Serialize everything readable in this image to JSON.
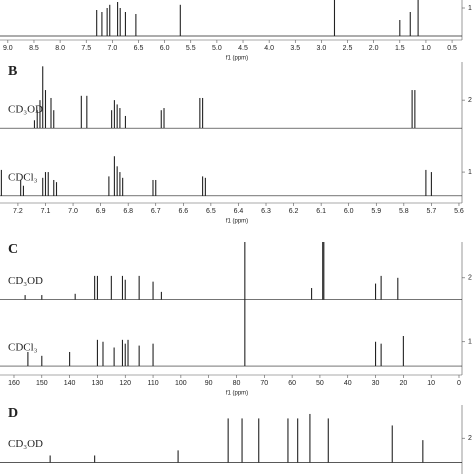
{
  "chart_data": [
    {
      "type": "spectrum",
      "xlabel": "f1 (ppm)",
      "xlim": [
        9.15,
        0.31
      ],
      "xticks": [
        {
          "value": 9,
          "label": "9.0"
        },
        8.5,
        {
          "value": 8,
          "label": "8.0"
        },
        7.5,
        {
          "value": 7,
          "label": "7.0"
        },
        6.5,
        {
          "value": 6,
          "label": "6.0"
        },
        5.5,
        {
          "value": 5,
          "label": "5.0"
        },
        4.5,
        {
          "value": 4,
          "label": "4.0"
        },
        3.5,
        {
          "value": 3,
          "label": "3.0"
        },
        2.5,
        {
          "value": 2,
          "label": "2.0"
        },
        1.5,
        {
          "value": 1,
          "label": "1.0"
        },
        0.5
      ],
      "y2lim": [
        0.2,
        1.2
      ],
      "y2ticks": [
        1
      ],
      "series": [
        {
          "color": "#222",
          "baseline": 0.3,
          "x": [
            7.3,
            7.2,
            7.1,
            7.05,
            6.9,
            6.85,
            6.75,
            6.55,
            5.7,
            2.75,
            1.5,
            1.3,
            1.15
          ],
          "values": [
            0.95,
            0.9,
            1.0,
            1.08,
            1.15,
            1.0,
            0.9,
            0.85,
            1.08,
            1.2,
            0.7,
            0.9,
            1.2
          ]
        }
      ]
    },
    {
      "type": "spectrum",
      "label": "B",
      "xlabel": "f1 (ppm)",
      "xlim": [
        7.265,
        5.589
      ],
      "xticks": [
        7.2,
        7.1,
        {
          "value": 7,
          "label": "7.0"
        },
        6.9,
        6.8,
        6.7,
        6.6,
        6.5,
        6.4,
        6.3,
        6.2,
        6.1,
        {
          "value": 6,
          "label": "6.0"
        },
        5.9,
        5.8,
        5.7,
        5.6
      ],
      "y2lim": [
        0.57,
        2.53
      ],
      "y2ticks": [
        1,
        2
      ],
      "series": [
        {
          "name": "CD₃OD",
          "color": "#222",
          "baseline": 1.61,
          "x": [
            7.14,
            7.13,
            7.12,
            7.11,
            7.1,
            7.08,
            7.07,
            6.97,
            6.95,
            6.86,
            6.85,
            6.84,
            6.83,
            6.81,
            6.68,
            6.67,
            6.54,
            6.53,
            5.77,
            5.76
          ],
          "values": [
            1.72,
            1.86,
            2.0,
            2.47,
            2.14,
            2.03,
            1.86,
            2.06,
            2.06,
            1.86,
            2.0,
            1.94,
            1.89,
            1.78,
            1.86,
            1.89,
            2.03,
            2.03,
            2.14,
            2.14
          ]
        },
        {
          "name": "CDCl₃",
          "color": "#222",
          "baseline": 0.67,
          "x": [
            7.26,
            7.19,
            7.18,
            7.11,
            7.1,
            7.09,
            7.07,
            7.06,
            6.87,
            6.85,
            6.84,
            6.83,
            6.82,
            6.71,
            6.7,
            6.53,
            6.52,
            5.72,
            5.7
          ],
          "values": [
            1.03,
            0.89,
            0.81,
            0.92,
            1.0,
            1.0,
            0.89,
            0.86,
            0.94,
            1.22,
            1.08,
            1.0,
            0.92,
            0.89,
            0.89,
            0.94,
            0.92,
            1.03,
            1.0
          ]
        }
      ]
    },
    {
      "type": "spectrum",
      "label": "C",
      "xlabel": "f1 (ppm)",
      "xlim": [
        165.03,
        -1.08
      ],
      "xticks": [
        160,
        150,
        140,
        130,
        120,
        110,
        100,
        90,
        80,
        70,
        60,
        50,
        40,
        30,
        20,
        10,
        0
      ],
      "y2lim": [
        0.48,
        2.56
      ],
      "y2ticks": [
        1,
        2
      ],
      "series": [
        {
          "name": "CD₃OD",
          "color": "#222",
          "baseline": 1.66,
          "x": [
            156,
            150,
            138,
            131,
            130,
            125,
            121,
            120,
            115,
            110,
            107,
            53,
            49,
            48.6,
            30,
            28,
            22
          ],
          "values": [
            1.73,
            1.73,
            1.75,
            2.03,
            2.03,
            2.03,
            2.03,
            1.97,
            2.03,
            1.94,
            1.78,
            1.84,
            2.56,
            2.56,
            1.91,
            2.03,
            2.0
          ]
        },
        {
          "name": "CDCl₃",
          "color": "#222",
          "baseline": 0.62,
          "x": [
            155,
            150,
            140,
            130,
            128,
            124,
            121,
            120,
            119,
            115,
            110,
            77,
            30,
            28,
            20
          ],
          "values": [
            0.84,
            0.78,
            0.84,
            1.03,
            1.0,
            0.91,
            1.03,
            0.97,
            1.03,
            0.94,
            0.97,
            2.56,
            1.0,
            0.97,
            1.09
          ]
        }
      ]
    },
    {
      "type": "spectrum",
      "label": "D",
      "xlim": [
        165.03,
        -1.08
      ],
      "y2lim": [
        1.44,
        2.52
      ],
      "y2ticks": [
        2
      ],
      "series": [
        {
          "name": "CD₃OD",
          "color": "#222",
          "baseline": 1.62,
          "x": [
            147,
            131,
            101,
            83,
            78,
            72,
            61.5,
            58,
            53.6,
            47,
            24,
            13
          ],
          "values": [
            1.73,
            1.73,
            1.81,
            2.31,
            2.31,
            2.31,
            2.31,
            2.31,
            2.38,
            2.31,
            2.2,
            1.97
          ]
        }
      ]
    }
  ]
}
